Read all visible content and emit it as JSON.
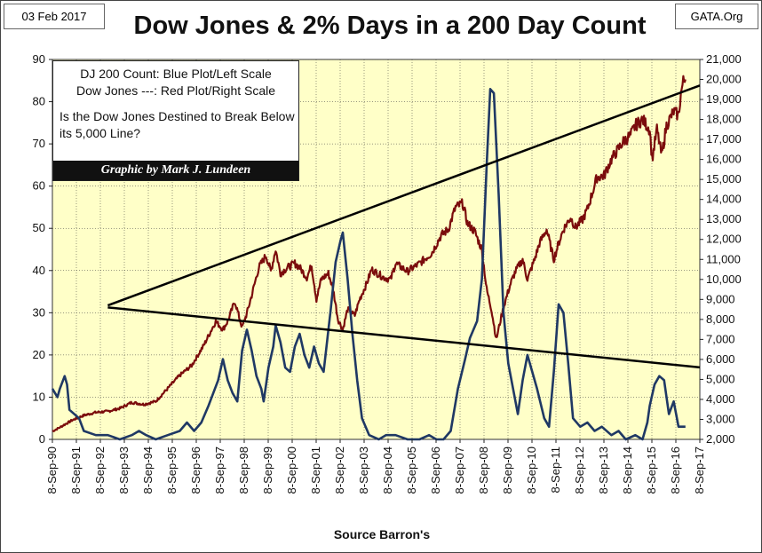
{
  "header": {
    "date": "03 Feb 2017",
    "source_site": "GATA.Org",
    "title": "Dow Jones & 2% Days in a 200 Day Count"
  },
  "legend": {
    "line1": "DJ 200 Count: Blue Plot/Left Scale",
    "line2": "Dow Jones ---: Red Plot/Right Scale",
    "question": "Is the Dow Jones Destined to Break Below its 5,000 Line?",
    "credit": "Graphic by Mark J. Lundeen"
  },
  "footer": {
    "source": "Source Barron's"
  },
  "colors": {
    "background": "#FFFFC8",
    "count": "#1F3864",
    "dow": "#7B0C0C",
    "trend": "#000000"
  },
  "chart_data": {
    "type": "line",
    "title": "Dow Jones & 2% Days in a 200 Day Count",
    "xlabel": "Source Barron's",
    "x_categories": [
      "8-Sep-90",
      "8-Sep-91",
      "8-Sep-92",
      "8-Sep-93",
      "8-Sep-94",
      "8-Sep-95",
      "8-Sep-96",
      "8-Sep-97",
      "8-Sep-98",
      "8-Sep-99",
      "8-Sep-00",
      "8-Sep-01",
      "8-Sep-02",
      "8-Sep-03",
      "8-Sep-04",
      "8-Sep-05",
      "8-Sep-06",
      "8-Sep-07",
      "8-Sep-08",
      "8-Sep-09",
      "8-Sep-10",
      "8-Sep-11",
      "8-Sep-12",
      "8-Sep-13",
      "8-Sep-14",
      "8-Sep-15",
      "8-Sep-16",
      "8-Sep-17"
    ],
    "x_range": [
      1990.69,
      2017.69
    ],
    "y_left": {
      "label": "DJ 200 Count",
      "ylim": [
        0,
        90
      ],
      "ticks": [
        0,
        10,
        20,
        30,
        40,
        50,
        60,
        70,
        80,
        90
      ]
    },
    "y_right": {
      "label": "Dow Jones",
      "ylim": [
        2000,
        21000
      ],
      "ticks": [
        "2,000",
        "3,000",
        "4,000",
        "5,000",
        "6,000",
        "7,000",
        "8,000",
        "9,000",
        "10,000",
        "11,000",
        "12,000",
        "13,000",
        "14,000",
        "15,000",
        "16,000",
        "17,000",
        "18,000",
        "19,000",
        "20,000",
        "21,000"
      ]
    },
    "series": [
      {
        "name": "DJ 200 Count",
        "axis": "left",
        "points": [
          [
            1990.69,
            12
          ],
          [
            1990.9,
            10
          ],
          [
            1991.0,
            12
          ],
          [
            1991.2,
            15
          ],
          [
            1991.3,
            13
          ],
          [
            1991.4,
            7
          ],
          [
            1991.8,
            5
          ],
          [
            1992.0,
            2
          ],
          [
            1992.5,
            1
          ],
          [
            1993.0,
            1
          ],
          [
            1993.5,
            0
          ],
          [
            1994.0,
            1
          ],
          [
            1994.3,
            2
          ],
          [
            1994.6,
            1
          ],
          [
            1995.0,
            0
          ],
          [
            1995.5,
            1
          ],
          [
            1996.0,
            2
          ],
          [
            1996.3,
            4
          ],
          [
            1996.6,
            2
          ],
          [
            1996.9,
            4
          ],
          [
            1997.2,
            8
          ],
          [
            1997.6,
            14
          ],
          [
            1997.8,
            19
          ],
          [
            1998.0,
            14
          ],
          [
            1998.2,
            11
          ],
          [
            1998.4,
            9
          ],
          [
            1998.6,
            21
          ],
          [
            1998.8,
            26
          ],
          [
            1999.0,
            21
          ],
          [
            1999.2,
            15
          ],
          [
            1999.4,
            12
          ],
          [
            1999.5,
            9
          ],
          [
            1999.7,
            17
          ],
          [
            1999.9,
            22
          ],
          [
            2000.0,
            27
          ],
          [
            2000.2,
            23
          ],
          [
            2000.4,
            17
          ],
          [
            2000.6,
            16
          ],
          [
            2000.8,
            22
          ],
          [
            2001.0,
            25
          ],
          [
            2001.2,
            20
          ],
          [
            2001.4,
            17
          ],
          [
            2001.6,
            22
          ],
          [
            2001.8,
            18
          ],
          [
            2002.0,
            16
          ],
          [
            2002.3,
            31
          ],
          [
            2002.5,
            42
          ],
          [
            2002.7,
            47
          ],
          [
            2002.8,
            49
          ],
          [
            2003.0,
            38
          ],
          [
            2003.2,
            25
          ],
          [
            2003.4,
            14
          ],
          [
            2003.6,
            5
          ],
          [
            2003.9,
            1
          ],
          [
            2004.3,
            0
          ],
          [
            2004.6,
            1
          ],
          [
            2005.0,
            1
          ],
          [
            2005.5,
            0
          ],
          [
            2006.0,
            0
          ],
          [
            2006.4,
            1
          ],
          [
            2006.7,
            0
          ],
          [
            2007.0,
            0
          ],
          [
            2007.3,
            2
          ],
          [
            2007.6,
            12
          ],
          [
            2007.9,
            19
          ],
          [
            2008.1,
            24
          ],
          [
            2008.4,
            28
          ],
          [
            2008.6,
            38
          ],
          [
            2008.8,
            65
          ],
          [
            2008.95,
            83
          ],
          [
            2009.1,
            82
          ],
          [
            2009.3,
            58
          ],
          [
            2009.5,
            30
          ],
          [
            2009.7,
            18
          ],
          [
            2009.9,
            12
          ],
          [
            2010.1,
            6
          ],
          [
            2010.3,
            14
          ],
          [
            2010.5,
            20
          ],
          [
            2010.7,
            16
          ],
          [
            2010.9,
            12
          ],
          [
            2011.2,
            5
          ],
          [
            2011.4,
            3
          ],
          [
            2011.6,
            16
          ],
          [
            2011.8,
            32
          ],
          [
            2012.0,
            30
          ],
          [
            2012.2,
            18
          ],
          [
            2012.4,
            5
          ],
          [
            2012.7,
            3
          ],
          [
            2013.0,
            4
          ],
          [
            2013.3,
            2
          ],
          [
            2013.6,
            3
          ],
          [
            2014.0,
            1
          ],
          [
            2014.3,
            2
          ],
          [
            2014.6,
            0
          ],
          [
            2015.0,
            1
          ],
          [
            2015.3,
            0
          ],
          [
            2015.5,
            4
          ],
          [
            2015.6,
            8
          ],
          [
            2015.8,
            13
          ],
          [
            2016.0,
            15
          ],
          [
            2016.2,
            14
          ],
          [
            2016.4,
            6
          ],
          [
            2016.6,
            9
          ],
          [
            2016.8,
            3
          ],
          [
            2017.09,
            3
          ]
        ]
      },
      {
        "name": "Dow Jones",
        "axis": "right",
        "points": [
          [
            1990.69,
            2400
          ],
          [
            1991.0,
            2600
          ],
          [
            1991.5,
            2950
          ],
          [
            1992.0,
            3200
          ],
          [
            1992.5,
            3350
          ],
          [
            1993.0,
            3400
          ],
          [
            1993.5,
            3550
          ],
          [
            1994.0,
            3850
          ],
          [
            1994.5,
            3750
          ],
          [
            1995.0,
            3900
          ],
          [
            1995.5,
            4550
          ],
          [
            1996.0,
            5200
          ],
          [
            1996.5,
            5700
          ],
          [
            1997.0,
            6700
          ],
          [
            1997.5,
            7900
          ],
          [
            1997.8,
            7500
          ],
          [
            1998.0,
            7900
          ],
          [
            1998.3,
            8900
          ],
          [
            1998.6,
            7600
          ],
          [
            1998.8,
            8300
          ],
          [
            1999.0,
            9200
          ],
          [
            1999.3,
            10600
          ],
          [
            1999.6,
            11200
          ],
          [
            1999.8,
            10400
          ],
          [
            2000.0,
            11500
          ],
          [
            2000.2,
            10300
          ],
          [
            2000.5,
            10600
          ],
          [
            2000.8,
            10800
          ],
          [
            2001.0,
            10600
          ],
          [
            2001.3,
            10100
          ],
          [
            2001.5,
            10700
          ],
          [
            2001.7,
            9000
          ],
          [
            2001.9,
            10000
          ],
          [
            2002.2,
            10300
          ],
          [
            2002.4,
            9500
          ],
          [
            2002.6,
            8000
          ],
          [
            2002.8,
            7500
          ],
          [
            2003.0,
            8500
          ],
          [
            2003.3,
            8200
          ],
          [
            2003.5,
            9000
          ],
          [
            2003.8,
            9800
          ],
          [
            2004.0,
            10500
          ],
          [
            2004.5,
            10100
          ],
          [
            2004.8,
            10000
          ],
          [
            2005.0,
            10800
          ],
          [
            2005.5,
            10400
          ],
          [
            2006.0,
            10800
          ],
          [
            2006.5,
            11300
          ],
          [
            2006.9,
            12200
          ],
          [
            2007.2,
            12500
          ],
          [
            2007.5,
            13600
          ],
          [
            2007.8,
            13800
          ],
          [
            2008.0,
            12800
          ],
          [
            2008.3,
            12400
          ],
          [
            2008.6,
            11500
          ],
          [
            2008.8,
            9500
          ],
          [
            2009.0,
            8500
          ],
          [
            2009.2,
            7000
          ],
          [
            2009.5,
            8600
          ],
          [
            2009.8,
            9800
          ],
          [
            2010.0,
            10400
          ],
          [
            2010.3,
            11000
          ],
          [
            2010.5,
            10000
          ],
          [
            2010.8,
            11000
          ],
          [
            2011.0,
            11800
          ],
          [
            2011.3,
            12500
          ],
          [
            2011.6,
            11000
          ],
          [
            2011.8,
            11800
          ],
          [
            2012.0,
            12500
          ],
          [
            2012.3,
            13100
          ],
          [
            2012.5,
            12600
          ],
          [
            2012.8,
            13000
          ],
          [
            2013.0,
            13500
          ],
          [
            2013.4,
            15100
          ],
          [
            2013.7,
            15200
          ],
          [
            2014.0,
            16000
          ],
          [
            2014.5,
            16900
          ],
          [
            2014.8,
            17200
          ],
          [
            2015.0,
            17700
          ],
          [
            2015.3,
            18000
          ],
          [
            2015.6,
            17500
          ],
          [
            2015.7,
            16000
          ],
          [
            2015.9,
            17500
          ],
          [
            2016.1,
            16200
          ],
          [
            2016.3,
            17700
          ],
          [
            2016.6,
            18400
          ],
          [
            2016.8,
            18200
          ],
          [
            2016.9,
            19300
          ],
          [
            2017.0,
            19900
          ],
          [
            2017.09,
            20000
          ]
        ]
      }
    ],
    "trendlines": [
      {
        "name": "upper",
        "points": [
          [
            1993.0,
            8700
          ],
          [
            2017.69,
            19700
          ]
        ]
      },
      {
        "name": "lower",
        "points": [
          [
            1993.0,
            8600
          ],
          [
            2017.69,
            5600
          ]
        ]
      }
    ]
  }
}
